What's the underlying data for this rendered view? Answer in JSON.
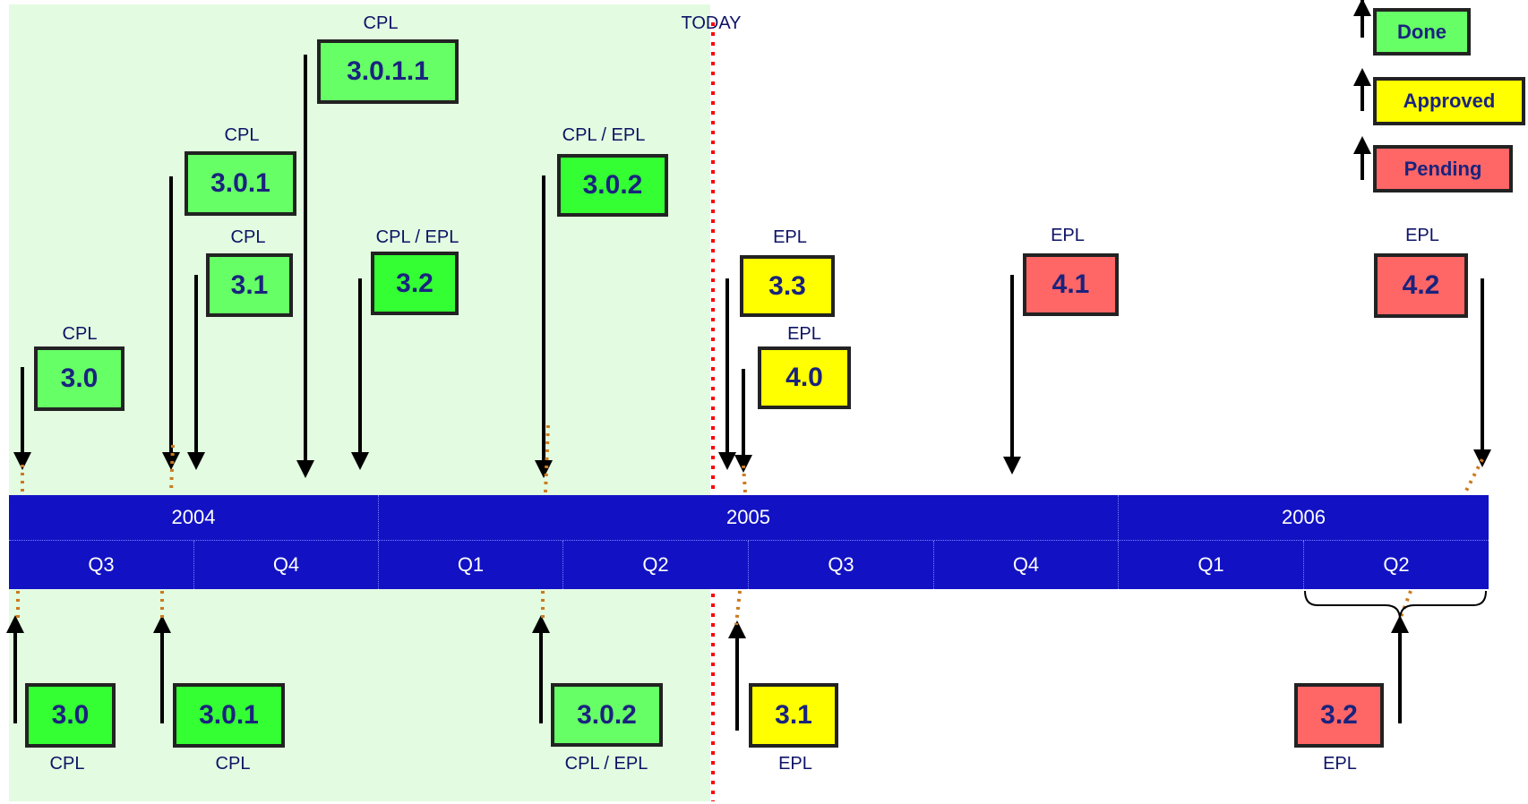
{
  "today_label": "TODAY",
  "legend": [
    {
      "text": "Done",
      "color": "#66ff66"
    },
    {
      "text": "Approved",
      "color": "#ffff00"
    },
    {
      "text": "Pending",
      "color": "#ff6666"
    }
  ],
  "years": [
    "2004",
    "2005",
    "2006"
  ],
  "quarters": [
    "Q3",
    "Q4",
    "Q1",
    "Q2",
    "Q3",
    "Q4",
    "Q1",
    "Q2"
  ],
  "top_releases": [
    {
      "version": "3.0",
      "label": "CPL",
      "status": "done"
    },
    {
      "version": "3.0.1",
      "label": "CPL",
      "status": "done"
    },
    {
      "version": "3.1",
      "label": "CPL",
      "status": "done"
    },
    {
      "version": "3.0.1.1",
      "label": "CPL",
      "status": "done"
    },
    {
      "version": "3.2",
      "label": "CPL / EPL",
      "status": "done-bright"
    },
    {
      "version": "3.0.2",
      "label": "CPL / EPL",
      "status": "done-bright"
    },
    {
      "version": "3.3",
      "label": "EPL",
      "status": "approved"
    },
    {
      "version": "4.0",
      "label": "EPL",
      "status": "approved"
    },
    {
      "version": "4.1",
      "label": "EPL",
      "status": "pending"
    },
    {
      "version": "4.2",
      "label": "EPL",
      "status": "pending"
    }
  ],
  "bottom_releases": [
    {
      "version": "3.0",
      "label": "CPL",
      "status": "done-bright"
    },
    {
      "version": "3.0.1",
      "label": "CPL",
      "status": "done-bright"
    },
    {
      "version": "3.0.2",
      "label": "CPL / EPL",
      "status": "done"
    },
    {
      "version": "3.1",
      "label": "EPL",
      "status": "approved"
    },
    {
      "version": "3.2",
      "label": "EPL",
      "status": "pending"
    }
  ],
  "colors": {
    "done": "#66ff66",
    "done-bright": "#33ff33",
    "approved": "#ffff00",
    "pending": "#ff6666",
    "axis": "#1212c4",
    "today": "#ff0000",
    "leader": "#cc7a1f"
  }
}
